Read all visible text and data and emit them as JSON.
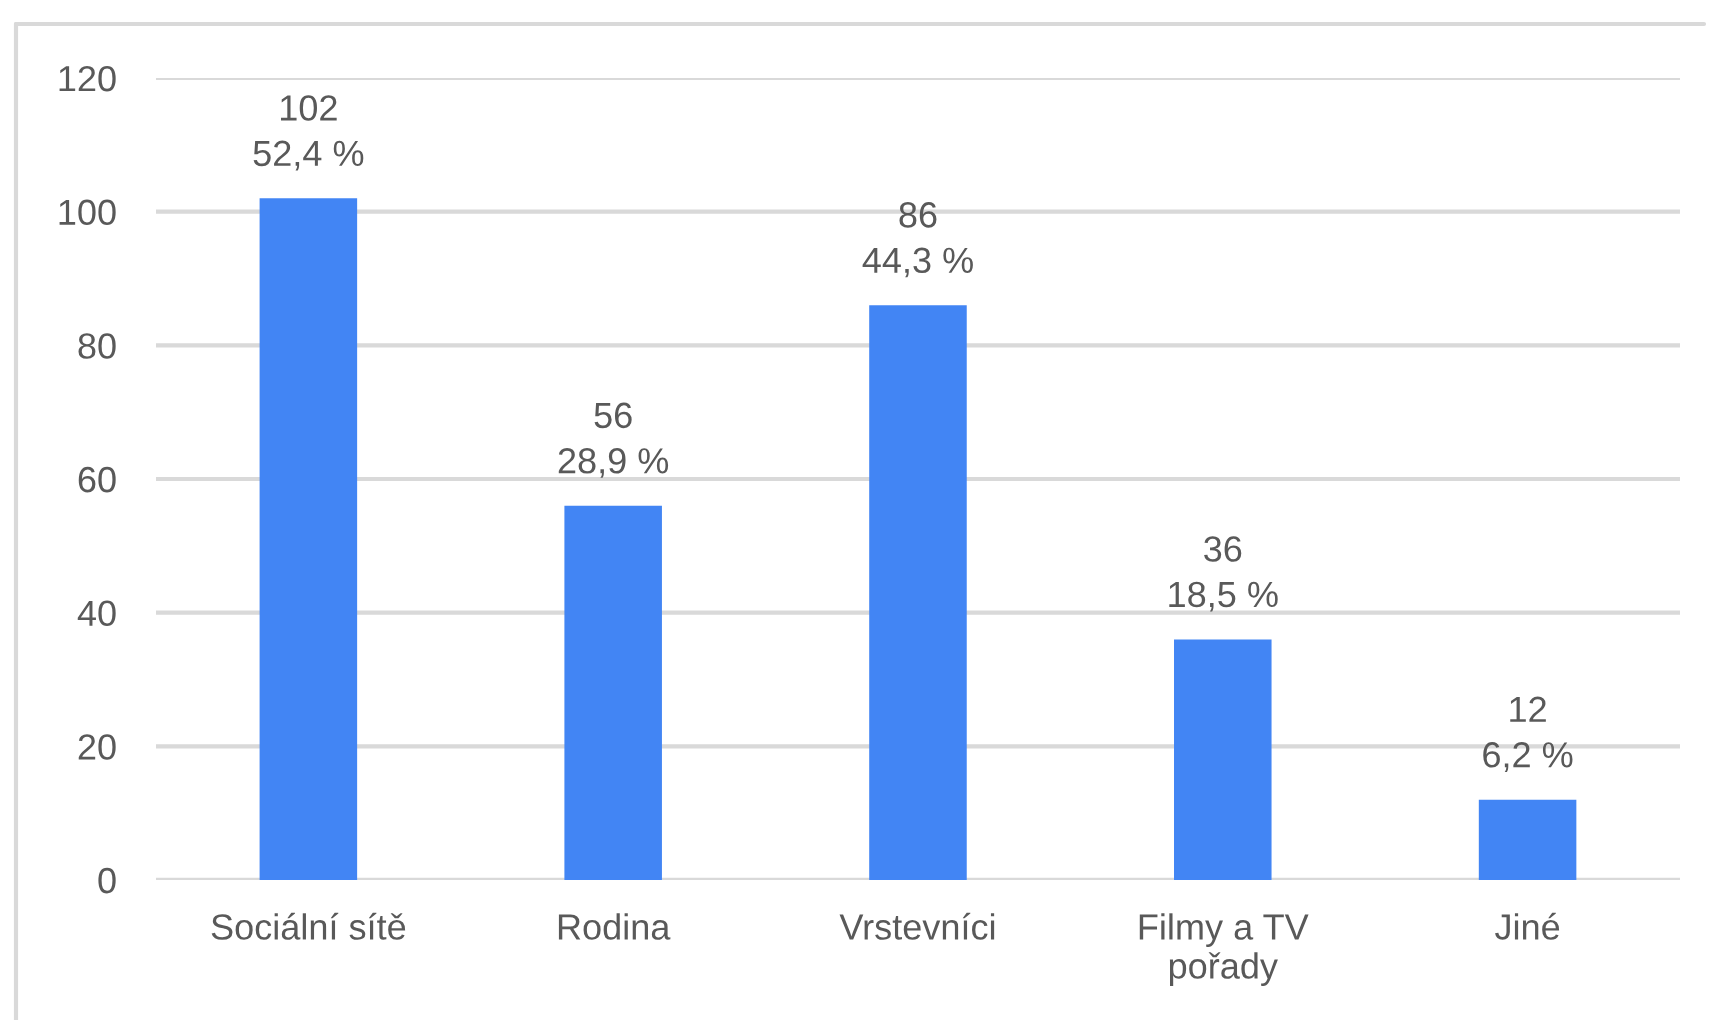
{
  "chart_data": {
    "type": "bar",
    "categories": [
      "Sociální sítě",
      "Rodina",
      "Vrstevníci",
      "Filmy a TV pořady",
      "Jiné"
    ],
    "values": [
      102,
      56,
      86,
      36,
      12
    ],
    "color": "#4285f4",
    "value_labels": [
      "102\n52,4 %",
      "56\n28,9 %",
      "86\n44,3 %",
      "36\n18,5 %",
      "12\n6,2 %"
    ],
    "ylim": [
      0,
      120
    ],
    "yticks": [
      0,
      20,
      40,
      60,
      80,
      100,
      120
    ],
    "grid": "y"
  }
}
